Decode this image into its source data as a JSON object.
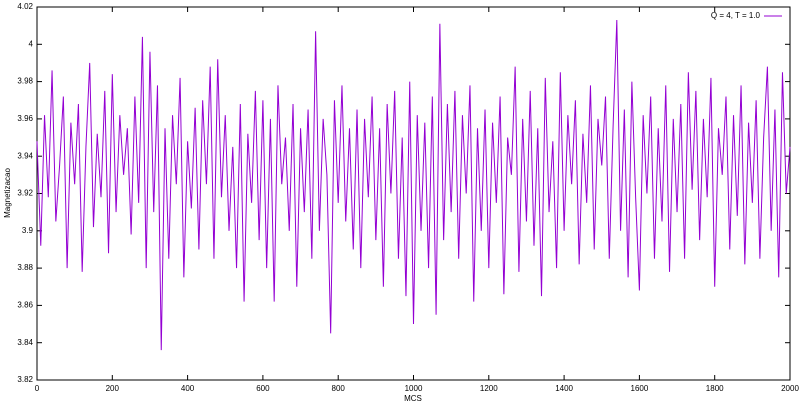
{
  "chart_data": {
    "type": "line",
    "x_label": "MCS",
    "y_label": "Magnetizacao",
    "x": [
      0,
      10,
      20,
      30,
      40,
      50,
      60,
      70,
      80,
      90,
      100,
      110,
      120,
      130,
      140,
      150,
      160,
      170,
      180,
      190,
      200,
      210,
      220,
      230,
      240,
      250,
      260,
      270,
      280,
      290,
      300,
      310,
      320,
      330,
      340,
      350,
      360,
      370,
      380,
      390,
      400,
      410,
      420,
      430,
      440,
      450,
      460,
      470,
      480,
      490,
      500,
      510,
      520,
      530,
      540,
      550,
      560,
      570,
      580,
      590,
      600,
      610,
      620,
      630,
      640,
      650,
      660,
      670,
      680,
      690,
      700,
      710,
      720,
      730,
      740,
      750,
      760,
      770,
      780,
      790,
      800,
      810,
      820,
      830,
      840,
      850,
      860,
      870,
      880,
      890,
      900,
      910,
      920,
      930,
      940,
      950,
      960,
      970,
      980,
      990,
      1000,
      1010,
      1020,
      1030,
      1040,
      1050,
      1060,
      1070,
      1080,
      1090,
      1100,
      1110,
      1120,
      1130,
      1140,
      1150,
      1160,
      1170,
      1180,
      1190,
      1200,
      1210,
      1220,
      1230,
      1240,
      1250,
      1260,
      1270,
      1280,
      1290,
      1300,
      1310,
      1320,
      1330,
      1340,
      1350,
      1360,
      1370,
      1380,
      1390,
      1400,
      1410,
      1420,
      1430,
      1440,
      1450,
      1460,
      1470,
      1480,
      1490,
      1500,
      1510,
      1520,
      1530,
      1540,
      1550,
      1560,
      1570,
      1580,
      1590,
      1600,
      1610,
      1620,
      1630,
      1640,
      1650,
      1660,
      1670,
      1680,
      1690,
      1700,
      1710,
      1720,
      1730,
      1740,
      1750,
      1760,
      1770,
      1780,
      1790,
      1800,
      1810,
      1820,
      1830,
      1840,
      1850,
      1860,
      1870,
      1880,
      1890,
      1900,
      1910,
      1920,
      1930,
      1940,
      1950,
      1960,
      1970,
      1980,
      1990,
      2000
    ],
    "series": [
      {
        "name": "Q = 4, T = 1.0",
        "color": "#9400d3",
        "values": [
          3.948,
          3.892,
          3.962,
          3.918,
          3.986,
          3.905,
          3.935,
          3.972,
          3.88,
          3.958,
          3.925,
          3.968,
          3.878,
          3.945,
          3.99,
          3.902,
          3.952,
          3.918,
          3.975,
          3.888,
          3.984,
          3.91,
          3.962,
          3.93,
          3.955,
          3.898,
          3.972,
          3.915,
          4.004,
          3.88,
          3.996,
          3.91,
          3.978,
          3.836,
          3.955,
          3.885,
          3.962,
          3.925,
          3.982,
          3.875,
          3.948,
          3.912,
          3.966,
          3.89,
          3.97,
          3.925,
          3.988,
          3.885,
          3.992,
          3.918,
          3.962,
          3.9,
          3.945,
          3.88,
          3.968,
          3.862,
          3.952,
          3.915,
          3.975,
          3.895,
          3.97,
          3.88,
          3.96,
          3.862,
          3.978,
          3.925,
          3.95,
          3.9,
          3.968,
          3.87,
          3.955,
          3.91,
          3.965,
          3.885,
          4.007,
          3.9,
          3.96,
          3.93,
          3.845,
          3.97,
          3.915,
          3.978,
          3.905,
          3.955,
          3.89,
          3.965,
          3.88,
          3.96,
          3.918,
          3.972,
          3.895,
          3.955,
          3.87,
          3.968,
          3.92,
          3.975,
          3.885,
          3.95,
          3.865,
          3.98,
          3.85,
          3.962,
          3.9,
          3.958,
          3.88,
          3.972,
          3.855,
          4.011,
          3.895,
          3.968,
          3.91,
          3.975,
          3.885,
          3.962,
          3.92,
          3.978,
          3.862,
          3.955,
          3.9,
          3.965,
          3.88,
          3.958,
          3.915,
          3.972,
          3.866,
          3.95,
          3.93,
          3.988,
          3.878,
          3.96,
          3.905,
          3.975,
          3.892,
          3.955,
          3.865,
          3.982,
          3.91,
          3.948,
          3.88,
          3.985,
          3.9,
          3.962,
          3.925,
          3.97,
          3.882,
          3.952,
          3.915,
          3.978,
          3.89,
          3.96,
          3.935,
          3.972,
          3.885,
          3.955,
          4.013,
          3.9,
          3.965,
          3.875,
          3.98,
          3.918,
          3.868,
          3.962,
          3.92,
          3.972,
          3.885,
          3.955,
          3.905,
          3.978,
          3.878,
          3.96,
          3.91,
          3.968,
          3.885,
          3.985,
          3.922,
          3.975,
          3.895,
          3.96,
          3.918,
          3.982,
          3.87,
          3.955,
          3.93,
          3.972,
          3.89,
          3.962,
          3.908,
          3.978,
          3.882,
          3.958,
          3.915,
          3.97,
          3.885,
          3.95,
          3.988,
          3.9,
          3.965,
          3.875,
          3.985,
          3.92,
          3.945
        ]
      }
    ],
    "xlim": [
      0,
      2000
    ],
    "xticks": [
      0,
      200,
      400,
      600,
      800,
      1000,
      1200,
      1400,
      1600,
      1800,
      2000
    ],
    "ylim": [
      3.82,
      4.02
    ],
    "yticks": [
      3.82,
      3.84,
      3.86,
      3.88,
      3.9,
      3.92,
      3.94,
      3.96,
      3.98,
      4,
      4.02
    ],
    "legend": "top-right"
  }
}
